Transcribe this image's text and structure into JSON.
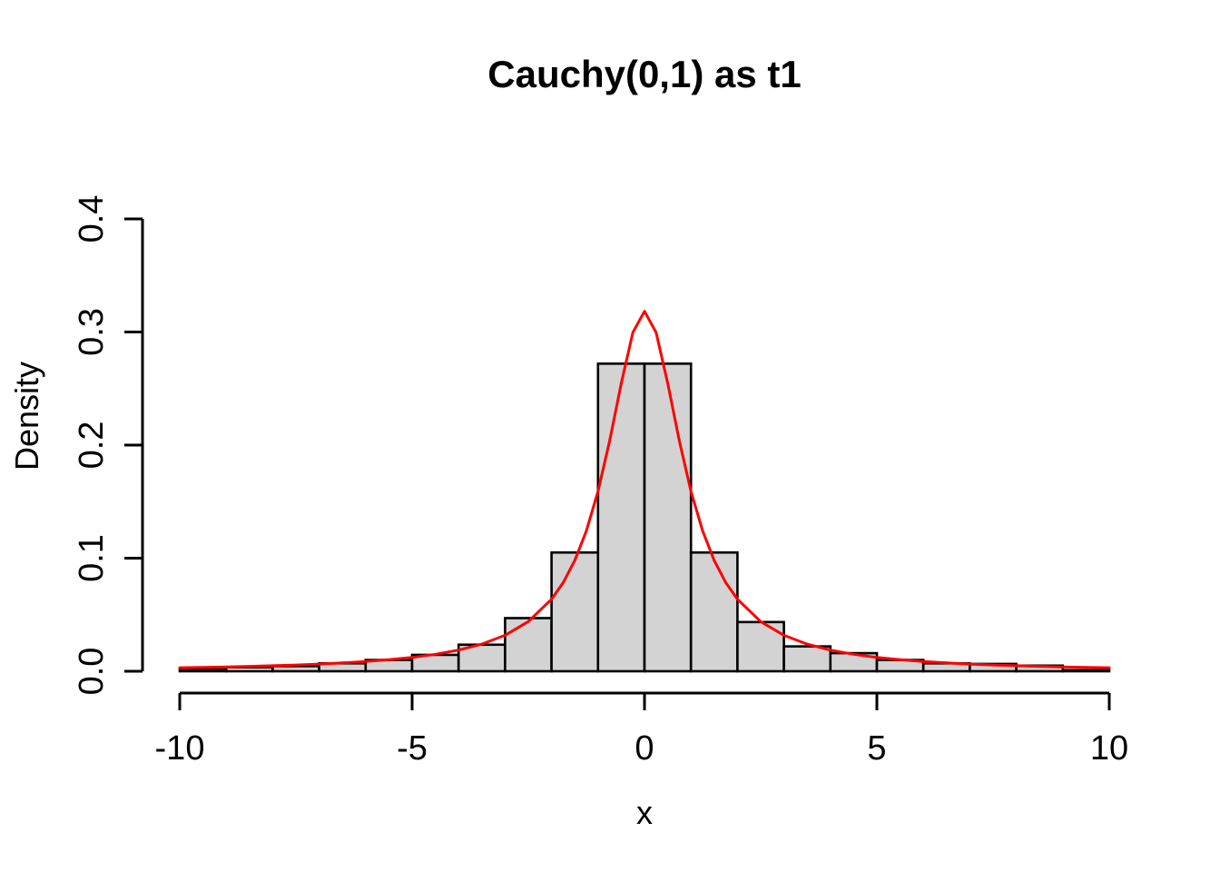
{
  "figure": {
    "background": "#ffffff",
    "text_color": "#000000"
  },
  "chart_data": {
    "type": "histogram_with_density_curve",
    "title": "Cauchy(0,1) as t1",
    "xlabel": "x",
    "ylabel": "Density",
    "xlim": [
      -10,
      10
    ],
    "ylim": [
      0,
      0.4
    ],
    "grid": false,
    "legend": null,
    "x_ticks": [
      -10,
      -5,
      0,
      5,
      10
    ],
    "x_tick_labels": [
      "-10",
      "-5",
      "0",
      "5",
      "10"
    ],
    "y_ticks": [
      0,
      0.1,
      0.2,
      0.3,
      0.4
    ],
    "y_tick_labels": [
      "0.0",
      "0.1",
      "0.2",
      "0.3",
      "0.4"
    ],
    "histogram": {
      "fill_color": "#d3d3d3",
      "border_color": "#000000",
      "bin_edges": [
        -10,
        -9,
        -8,
        -7,
        -6,
        -5,
        -4,
        -3,
        -2,
        -1,
        0,
        1,
        2,
        3,
        4,
        5,
        6,
        7,
        8,
        9,
        10
      ],
      "densities": [
        0.002,
        0.0035,
        0.0045,
        0.007,
        0.01,
        0.0145,
        0.0235,
        0.047,
        0.105,
        0.272,
        0.272,
        0.105,
        0.0435,
        0.022,
        0.016,
        0.01,
        0.007,
        0.0065,
        0.005,
        0.001
      ]
    },
    "curve": {
      "name": "cauchy-0-1-density-curve",
      "color": "#ff0000",
      "points": [
        [
          -10,
          0.00315
        ],
        [
          -9.5,
          0.00349
        ],
        [
          -9,
          0.00388
        ],
        [
          -8.5,
          0.00434
        ],
        [
          -8,
          0.0049
        ],
        [
          -7.5,
          0.00556
        ],
        [
          -7,
          0.00637
        ],
        [
          -6.5,
          0.00736
        ],
        [
          -6,
          0.0086
        ],
        [
          -5.5,
          0.01019
        ],
        [
          -5,
          0.01224
        ],
        [
          -4.5,
          0.01498
        ],
        [
          -4,
          0.01872
        ],
        [
          -3.5,
          0.02402
        ],
        [
          -3,
          0.03183
        ],
        [
          -2.5,
          0.0439
        ],
        [
          -2,
          0.06366
        ],
        [
          -1.75,
          0.07835
        ],
        [
          -1.5,
          0.09794
        ],
        [
          -1.25,
          0.12422
        ],
        [
          -1,
          0.15915
        ],
        [
          -0.75,
          0.20372
        ],
        [
          -0.5,
          0.25465
        ],
        [
          -0.25,
          0.29958
        ],
        [
          0,
          0.31831
        ],
        [
          0.25,
          0.29958
        ],
        [
          0.5,
          0.25465
        ],
        [
          0.75,
          0.20372
        ],
        [
          1,
          0.15915
        ],
        [
          1.25,
          0.12422
        ],
        [
          1.5,
          0.09794
        ],
        [
          1.75,
          0.07835
        ],
        [
          2,
          0.06366
        ],
        [
          2.5,
          0.0439
        ],
        [
          3,
          0.03183
        ],
        [
          3.5,
          0.02402
        ],
        [
          4,
          0.01872
        ],
        [
          4.5,
          0.01498
        ],
        [
          5,
          0.01224
        ],
        [
          5.5,
          0.01019
        ],
        [
          6,
          0.0086
        ],
        [
          6.5,
          0.00736
        ],
        [
          7,
          0.00637
        ],
        [
          7.5,
          0.00556
        ],
        [
          8,
          0.0049
        ],
        [
          8.5,
          0.00434
        ],
        [
          9,
          0.00388
        ],
        [
          9.5,
          0.00349
        ],
        [
          10,
          0.00315
        ]
      ]
    }
  }
}
